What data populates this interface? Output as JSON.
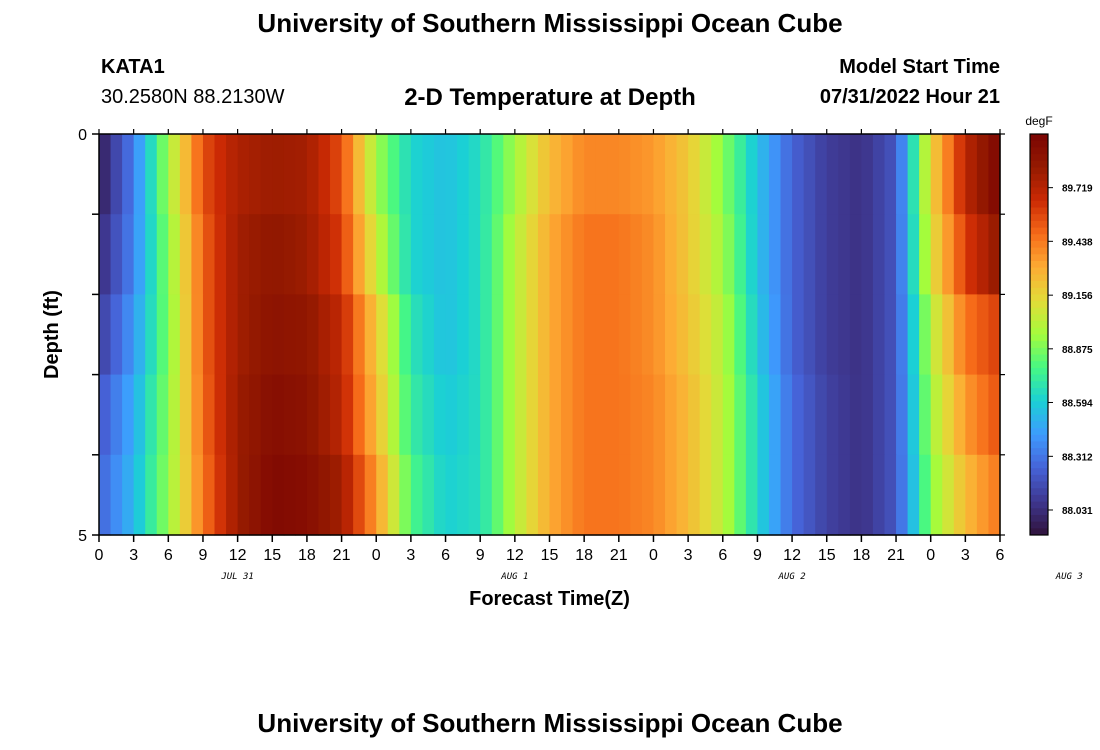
{
  "header": {
    "title": "University of Southern Mississippi Ocean Cube",
    "station_id": "KATA1",
    "coords": "30.2580N  88.2130W",
    "chart_title": "2-D Temperature at Depth",
    "start_label": "Model Start Time",
    "start_value": "07/31/2022 Hour 21"
  },
  "footer": {
    "title": "University of Southern Mississippi Ocean Cube"
  },
  "chart_data": {
    "type": "heatmap",
    "title": "2-D Temperature at Depth",
    "xlabel": "Forecast Time(Z)",
    "ylabel": "Depth (ft)",
    "x_ticks": [
      "0",
      "3",
      "6",
      "9",
      "12",
      "15",
      "18",
      "21",
      "0",
      "3",
      "6",
      "9",
      "12",
      "15",
      "18",
      "21",
      "0",
      "3",
      "6",
      "9",
      "12",
      "15",
      "18",
      "21",
      "0",
      "3",
      "6"
    ],
    "date_labels": [
      {
        "label": "JUL 31",
        "hour_index": 12
      },
      {
        "label": "AUG 1",
        "hour_index": 36
      },
      {
        "label": "AUG 2",
        "hour_index": 60
      },
      {
        "label": "AUG 3",
        "hour_index": 84
      }
    ],
    "xlim_hours": [
      0,
      78
    ],
    "y_ticks": [
      "0",
      "5"
    ],
    "ylim": [
      0,
      5
    ],
    "depth_rows": [
      0,
      1,
      2,
      3,
      4
    ],
    "colorbar": {
      "unit": "degF",
      "ticks": [
        "89.719",
        "89.438",
        "89.156",
        "88.875",
        "88.594",
        "88.312",
        "88.031"
      ],
      "tick_values": [
        89.719,
        89.438,
        89.156,
        88.875,
        88.594,
        88.312,
        88.031
      ],
      "range": [
        87.9,
        90.0
      ],
      "colors": [
        "#30123b",
        "#3e378f",
        "#4662d7",
        "#3e9bfe",
        "#1bd0d5",
        "#46f884",
        "#a4fc3c",
        "#e2dc38",
        "#fdac34",
        "#f66b19",
        "#cb2a04",
        "#951a01",
        "#7a0403"
      ]
    },
    "key_hours": [
      0,
      3,
      6,
      9,
      12,
      15,
      18,
      21,
      24,
      27,
      30,
      33,
      36,
      39,
      42,
      45,
      48,
      51,
      54,
      57,
      60,
      63,
      66,
      69,
      72,
      75,
      78
    ],
    "key_values": [
      [
        87.95,
        88.34,
        88.95,
        89.55,
        89.75,
        89.8,
        89.78,
        89.55,
        88.95,
        88.62,
        88.55,
        88.65,
        88.95,
        89.25,
        89.4,
        89.4,
        89.35,
        89.2,
        88.9,
        88.55,
        88.25,
        88.1,
        88.05,
        88.2,
        89.15,
        89.7,
        89.98
      ],
      [
        88.02,
        88.36,
        88.9,
        89.5,
        89.78,
        89.85,
        89.8,
        89.6,
        89.05,
        88.62,
        88.55,
        88.65,
        89.0,
        89.3,
        89.45,
        89.45,
        89.38,
        89.2,
        88.95,
        88.55,
        88.25,
        88.1,
        88.05,
        88.2,
        89.1,
        89.6,
        89.85
      ],
      [
        88.1,
        88.42,
        88.88,
        89.5,
        89.78,
        89.88,
        89.85,
        89.68,
        89.2,
        88.68,
        88.55,
        88.65,
        89.0,
        89.3,
        89.45,
        89.45,
        89.38,
        89.22,
        89.0,
        88.58,
        88.25,
        88.1,
        88.05,
        88.2,
        89.0,
        89.45,
        89.6
      ],
      [
        88.2,
        88.48,
        88.9,
        89.48,
        89.8,
        89.92,
        89.88,
        89.7,
        89.25,
        88.72,
        88.58,
        88.65,
        89.0,
        89.3,
        89.45,
        89.45,
        89.4,
        89.25,
        89.02,
        88.62,
        88.28,
        88.12,
        88.05,
        88.2,
        88.95,
        89.35,
        89.55
      ],
      [
        88.25,
        88.52,
        88.92,
        89.45,
        89.8,
        89.95,
        89.92,
        89.78,
        89.35,
        88.78,
        88.6,
        88.65,
        89.0,
        89.3,
        89.45,
        89.45,
        89.4,
        89.25,
        89.02,
        88.62,
        88.28,
        88.12,
        88.05,
        88.2,
        88.9,
        89.25,
        89.45
      ]
    ]
  }
}
